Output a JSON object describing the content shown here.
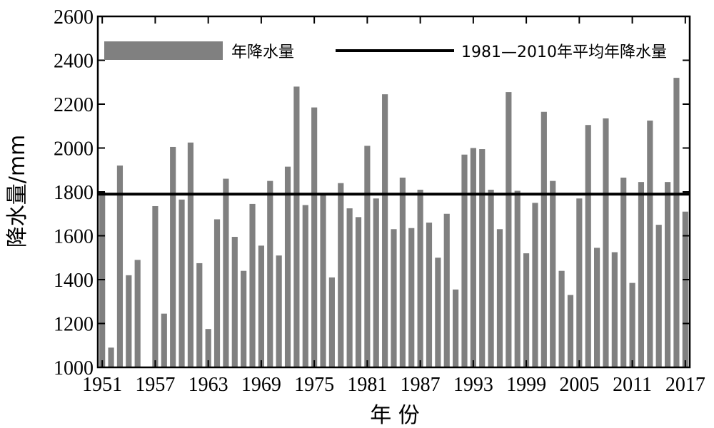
{
  "chart_data": {
    "type": "bar",
    "xlabel": "年 份",
    "ylabel": "降水量/mm",
    "ylim": [
      1000,
      2600
    ],
    "yticks": [
      1000,
      1200,
      1400,
      1600,
      1800,
      2000,
      2200,
      2400,
      2600
    ],
    "xticks": [
      1951,
      1957,
      1963,
      1969,
      1975,
      1981,
      1987,
      1993,
      1999,
      2005,
      2011,
      2017
    ],
    "grid": false,
    "legend_position": "top",
    "colors": {
      "bar": "#808080",
      "line": "#000000"
    },
    "x": [
      1951,
      1952,
      1953,
      1954,
      1955,
      1956,
      1957,
      1958,
      1959,
      1960,
      1961,
      1962,
      1963,
      1964,
      1965,
      1966,
      1967,
      1968,
      1969,
      1970,
      1971,
      1972,
      1973,
      1974,
      1975,
      1976,
      1977,
      1978,
      1979,
      1980,
      1981,
      1982,
      1983,
      1984,
      1985,
      1986,
      1987,
      1988,
      1989,
      1990,
      1991,
      1992,
      1993,
      1994,
      1995,
      1996,
      1997,
      1998,
      1999,
      2000,
      2001,
      2002,
      2003,
      2004,
      2005,
      2006,
      2007,
      2008,
      2009,
      2010,
      2011,
      2012,
      2013,
      2014,
      2015,
      2016,
      2017
    ],
    "series": [
      {
        "name": "年降水量",
        "values": [
          1800,
          1090,
          1920,
          1420,
          1490,
          null,
          1735,
          1245,
          2005,
          1765,
          2025,
          1475,
          1175,
          1675,
          1860,
          1595,
          1440,
          1745,
          1555,
          1850,
          1510,
          1915,
          2280,
          1740,
          2185,
          1790,
          1410,
          1840,
          1725,
          1685,
          2010,
          1770,
          2245,
          1630,
          1865,
          1635,
          1810,
          1660,
          1500,
          1700,
          1355,
          1970,
          2000,
          1995,
          1810,
          1630,
          2255,
          1805,
          1520,
          1750,
          2165,
          1850,
          1440,
          1330,
          1770,
          2105,
          1545,
          2135,
          1525,
          1865,
          1385,
          1845,
          2125,
          1650,
          1845,
          2320,
          1710
        ]
      },
      {
        "name": "1981—2010年平均年降水量",
        "type": "line",
        "value": 1790
      }
    ]
  }
}
